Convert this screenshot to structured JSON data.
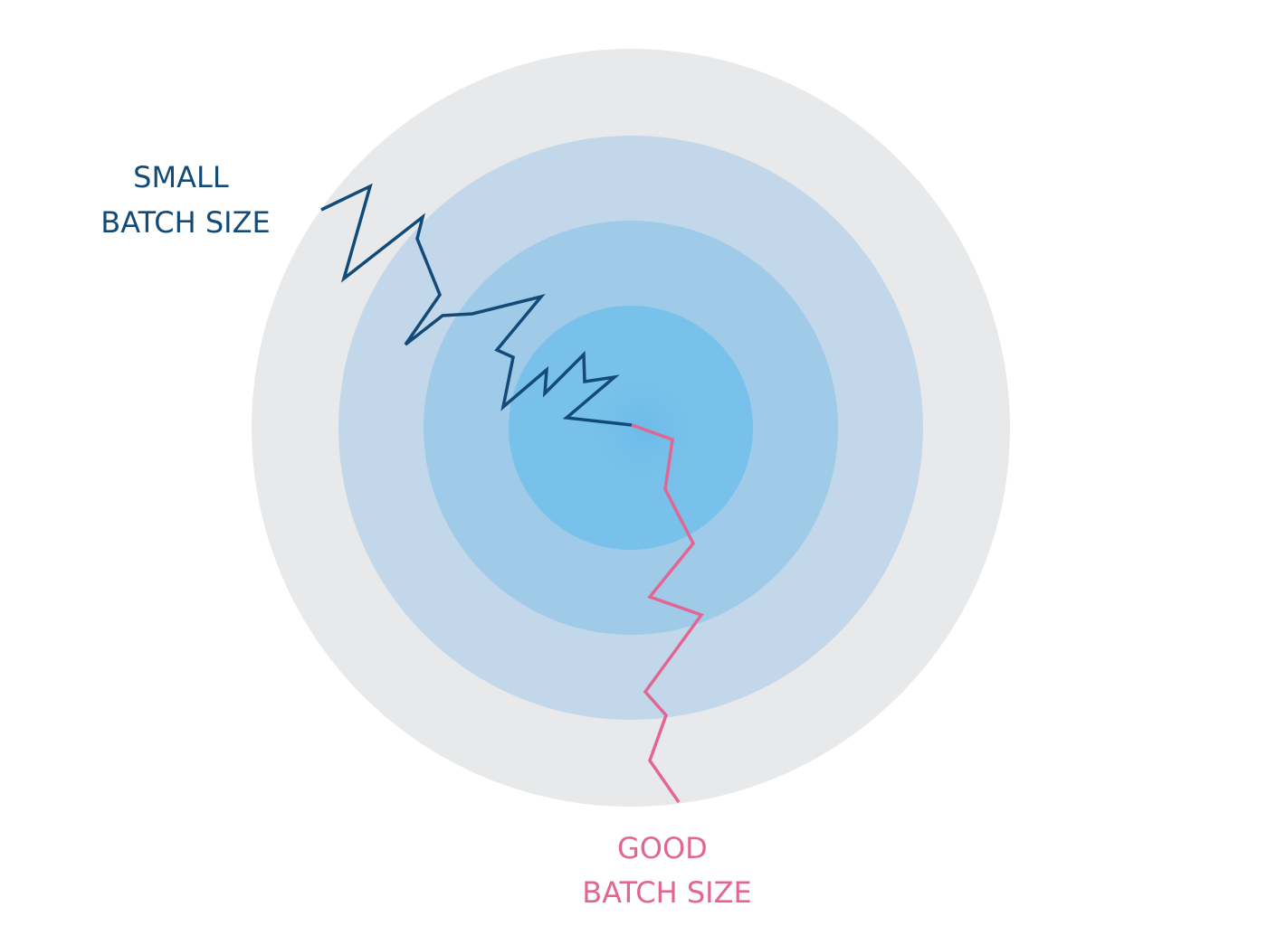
{
  "labels": {
    "small_line1": "SMALL",
    "small_line2": "BATCH SIZE",
    "good_line1": "GOOD",
    "good_line2": "BATCH SIZE"
  },
  "colors": {
    "ring_outer": "#e8e9ea",
    "ring_2": "#c3d7ea",
    "ring_3": "#9fcae8",
    "ring_4": "#78c1ea",
    "center_glow": "#68b9e8",
    "small_path": "#124a78",
    "good_path": "#e26592",
    "small_text": "#124a78",
    "good_text": "#e26592"
  }
}
